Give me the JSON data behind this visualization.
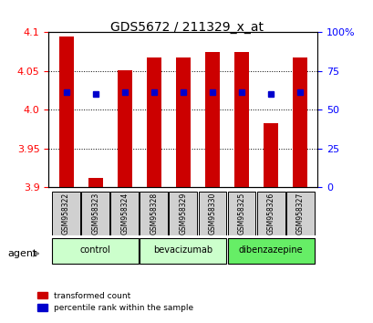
{
  "title": "GDS5672 / 211329_x_at",
  "samples": [
    "GSM958322",
    "GSM958323",
    "GSM958324",
    "GSM958328",
    "GSM958329",
    "GSM958330",
    "GSM958325",
    "GSM958326",
    "GSM958327"
  ],
  "bar_heights": [
    4.095,
    3.912,
    4.051,
    4.067,
    4.067,
    4.074,
    4.074,
    3.983,
    4.067
  ],
  "blue_dot_y": [
    4.023,
    4.02,
    4.023,
    4.023,
    4.023,
    4.023,
    4.023,
    4.02,
    4.023
  ],
  "ylim_left": [
    3.9,
    4.1
  ],
  "ylim_right": [
    0,
    100
  ],
  "bar_color": "#cc0000",
  "dot_color": "#0000cc",
  "tick_left": [
    3.9,
    3.95,
    4.0,
    4.05,
    4.1
  ],
  "tick_right": [
    0,
    25,
    50,
    75,
    100
  ],
  "tick_right_labels": [
    "0",
    "25",
    "50",
    "75",
    "100%"
  ],
  "grid_lines": [
    3.95,
    4.0,
    4.05
  ],
  "group_info": [
    {
      "start": 0,
      "end": 2,
      "label": "control",
      "color": "#ccffcc"
    },
    {
      "start": 3,
      "end": 5,
      "label": "bevacizumab",
      "color": "#ccffcc"
    },
    {
      "start": 6,
      "end": 8,
      "label": "dibenzazepine",
      "color": "#66ee66"
    }
  ],
  "legend_items": [
    "transformed count",
    "percentile rank within the sample"
  ],
  "agent_label": "agent"
}
